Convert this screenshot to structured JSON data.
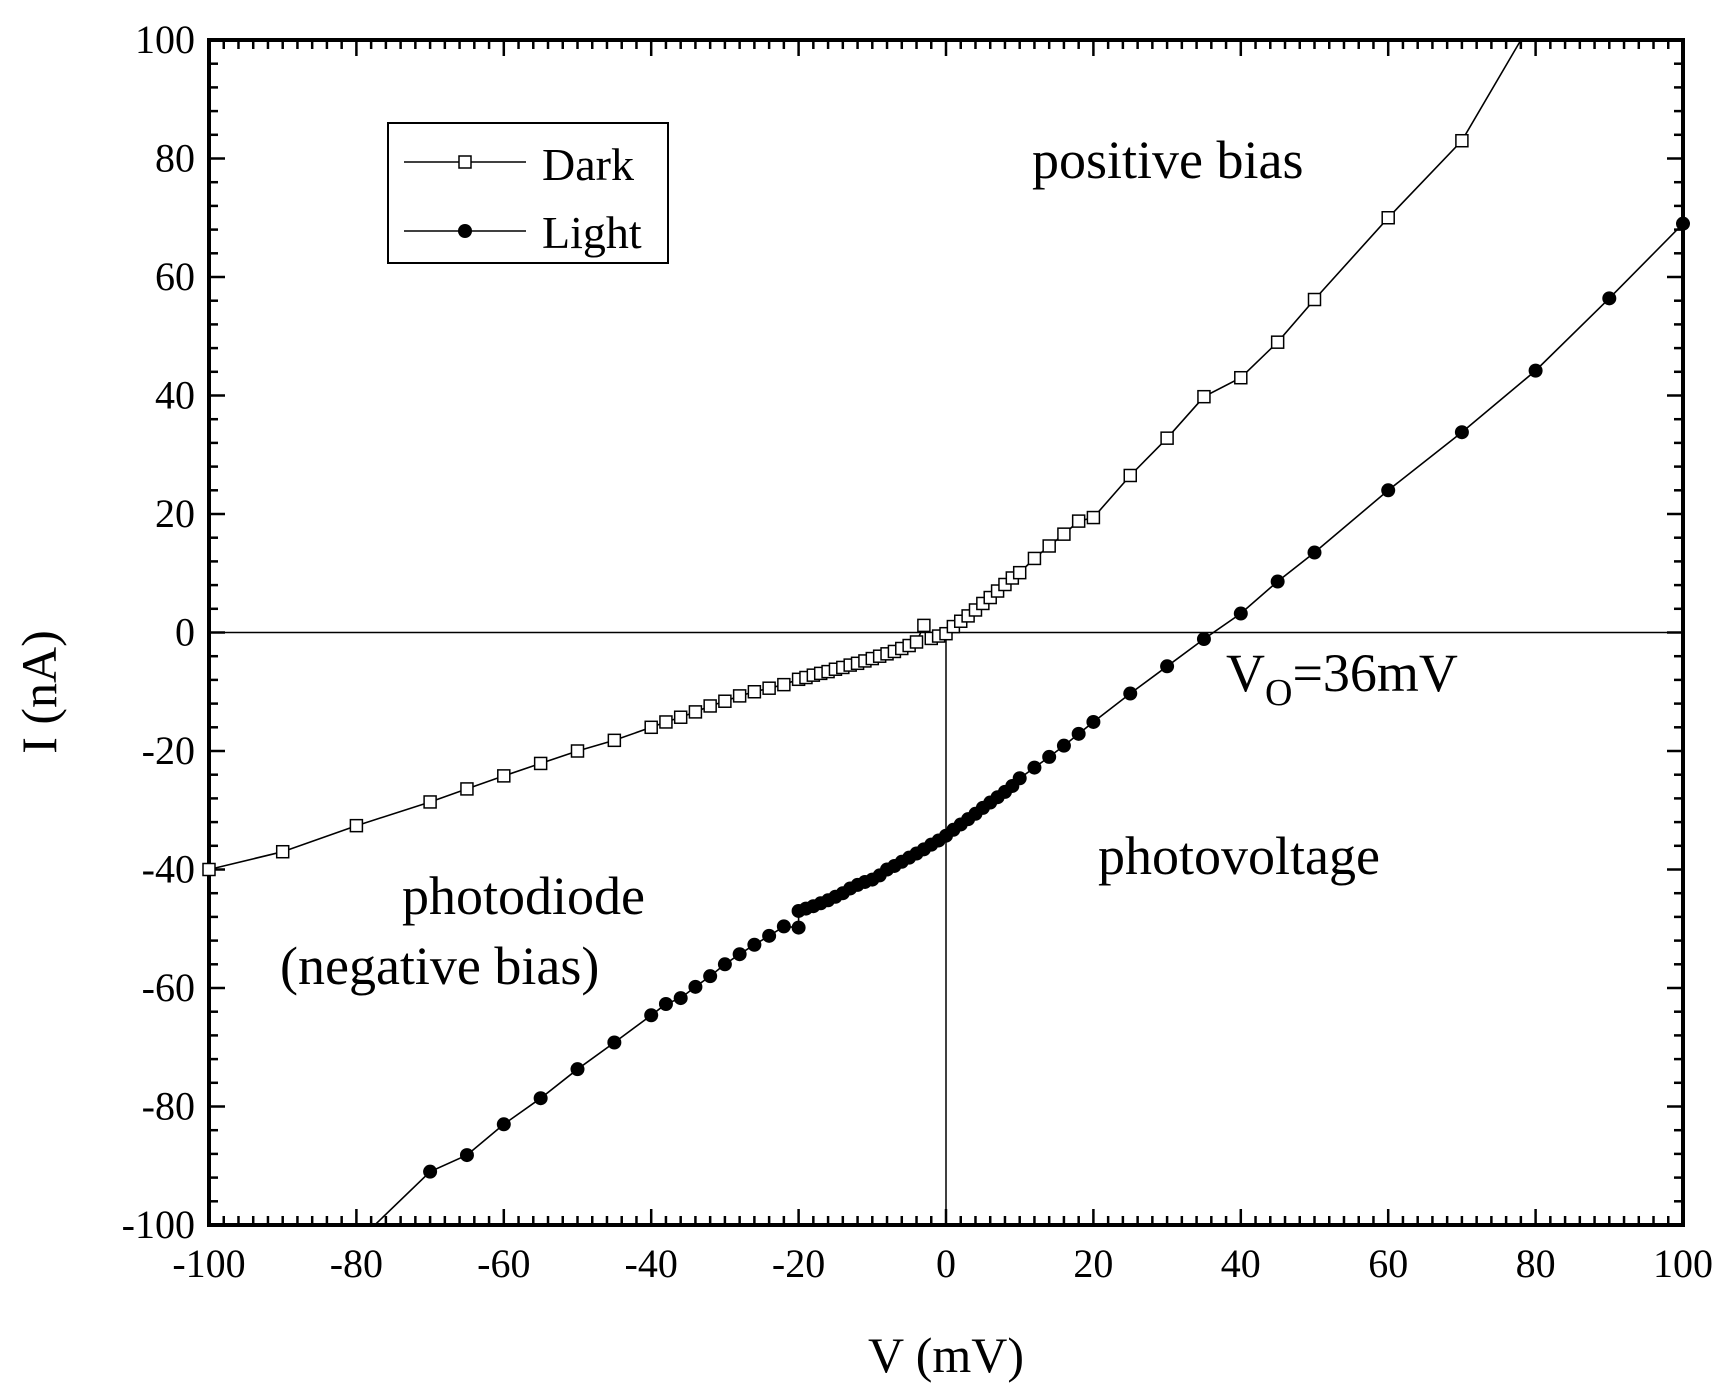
{
  "chart_data": {
    "type": "line",
    "title": "",
    "xlabel": "V (mV)",
    "ylabel": "I (nA)",
    "xlim": [
      -100,
      100
    ],
    "ylim": [
      -100,
      100
    ],
    "x_ticks": [
      -100,
      -80,
      -60,
      -40,
      -20,
      0,
      20,
      40,
      60,
      80,
      100
    ],
    "y_ticks": [
      -100,
      -80,
      -60,
      -40,
      -20,
      0,
      20,
      40,
      60,
      80,
      100
    ],
    "grid": false,
    "legend_position": "top-left",
    "annotations": {
      "positive_bias": "positive bias",
      "photovoltage": "photovoltage",
      "photodiode": "photodiode",
      "negative_bias": "(negative bias)",
      "vo_main": "V",
      "vo_sub": "O",
      "vo_rest": "=36mV"
    },
    "series": [
      {
        "name": "Dark",
        "marker": "open-square",
        "color": "#000000",
        "points": [
          [
            -100,
            -40.0
          ],
          [
            -90,
            -37.0
          ],
          [
            -80,
            -32.6
          ],
          [
            -70,
            -28.6
          ],
          [
            -65,
            -26.4
          ],
          [
            -60,
            -24.2
          ],
          [
            -55,
            -22.1
          ],
          [
            -50,
            -20.0
          ],
          [
            -45,
            -18.2
          ],
          [
            -40,
            -16.0
          ],
          [
            -38,
            -15.1
          ],
          [
            -36,
            -14.3
          ],
          [
            -34,
            -13.4
          ],
          [
            -32,
            -12.4
          ],
          [
            -30,
            -11.6
          ],
          [
            -28,
            -10.7
          ],
          [
            -26,
            -10.0
          ],
          [
            -24,
            -9.4
          ],
          [
            -22,
            -8.8
          ],
          [
            -20,
            -7.9
          ],
          [
            -19,
            -7.6
          ],
          [
            -18,
            -7.2
          ],
          [
            -17,
            -6.9
          ],
          [
            -16,
            -6.6
          ],
          [
            -15,
            -6.2
          ],
          [
            -14,
            -5.9
          ],
          [
            -13,
            -5.5
          ],
          [
            -12,
            -5.2
          ],
          [
            -11,
            -4.8
          ],
          [
            -10,
            -4.4
          ],
          [
            -9,
            -4.0
          ],
          [
            -8,
            -3.6
          ],
          [
            -7,
            -3.2
          ],
          [
            -6,
            -2.7
          ],
          [
            -5,
            -2.2
          ],
          [
            -4,
            -1.6
          ],
          [
            -3,
            1.2
          ],
          [
            -2,
            -1.0
          ],
          [
            -1,
            -0.6
          ],
          [
            0,
            -0.2
          ],
          [
            1,
            1.0
          ],
          [
            2,
            1.9
          ],
          [
            3,
            2.8
          ],
          [
            4,
            3.8
          ],
          [
            5,
            4.9
          ],
          [
            6,
            5.9
          ],
          [
            7,
            7.0
          ],
          [
            8,
            8.1
          ],
          [
            9,
            9.2
          ],
          [
            10,
            10.1
          ],
          [
            12,
            12.5
          ],
          [
            14,
            14.6
          ],
          [
            16,
            16.6
          ],
          [
            18,
            18.8
          ],
          [
            20,
            19.4
          ],
          [
            25,
            26.5
          ],
          [
            30,
            32.8
          ],
          [
            35,
            39.8
          ],
          [
            40,
            43.0
          ],
          [
            45,
            49.0
          ],
          [
            50,
            56.2
          ],
          [
            60,
            70.0
          ],
          [
            70,
            83.0
          ],
          [
            78,
            100
          ]
        ]
      },
      {
        "name": "Light",
        "marker": "filled-circle",
        "color": "#000000",
        "points": [
          [
            -77.5,
            -100
          ],
          [
            -70,
            -91.0
          ],
          [
            -65,
            -88.2
          ],
          [
            -60,
            -83.0
          ],
          [
            -55,
            -78.6
          ],
          [
            -50,
            -73.7
          ],
          [
            -45,
            -69.2
          ],
          [
            -40,
            -64.6
          ],
          [
            -38,
            -62.7
          ],
          [
            -36,
            -61.7
          ],
          [
            -34,
            -59.8
          ],
          [
            -32,
            -58.0
          ],
          [
            -30,
            -56.0
          ],
          [
            -28,
            -54.3
          ],
          [
            -26,
            -52.7
          ],
          [
            -24,
            -51.2
          ],
          [
            -22,
            -49.6
          ],
          [
            -20,
            -49.8
          ],
          [
            -20,
            -47.0
          ],
          [
            -19,
            -46.6
          ],
          [
            -18,
            -46.2
          ],
          [
            -17,
            -45.7
          ],
          [
            -16,
            -45.2
          ],
          [
            -15,
            -44.6
          ],
          [
            -14,
            -44.0
          ],
          [
            -13,
            -43.2
          ],
          [
            -12,
            -42.6
          ],
          [
            -11,
            -42.1
          ],
          [
            -10,
            -41.7
          ],
          [
            -9,
            -41.0
          ],
          [
            -8,
            -40.0
          ],
          [
            -7,
            -39.4
          ],
          [
            -6,
            -38.7
          ],
          [
            -5,
            -38.0
          ],
          [
            -4,
            -37.3
          ],
          [
            -3,
            -36.6
          ],
          [
            -2,
            -35.8
          ],
          [
            -1,
            -35.1
          ],
          [
            0,
            -34.3
          ],
          [
            1,
            -33.3
          ],
          [
            2,
            -32.4
          ],
          [
            3,
            -31.5
          ],
          [
            4,
            -30.6
          ],
          [
            5,
            -29.6
          ],
          [
            6,
            -28.7
          ],
          [
            7,
            -27.8
          ],
          [
            8,
            -26.9
          ],
          [
            9,
            -25.9
          ],
          [
            10,
            -24.6
          ],
          [
            12,
            -22.8
          ],
          [
            14,
            -21.0
          ],
          [
            16,
            -19.1
          ],
          [
            18,
            -17.1
          ],
          [
            20,
            -15.1
          ],
          [
            25,
            -10.3
          ],
          [
            30,
            -5.7
          ],
          [
            35,
            -1.1
          ],
          [
            40,
            3.2
          ],
          [
            45,
            8.6
          ],
          [
            50,
            13.5
          ],
          [
            60,
            24.0
          ],
          [
            70,
            33.8
          ],
          [
            80,
            44.2
          ],
          [
            90,
            56.4
          ],
          [
            100,
            69.0
          ]
        ]
      }
    ]
  }
}
